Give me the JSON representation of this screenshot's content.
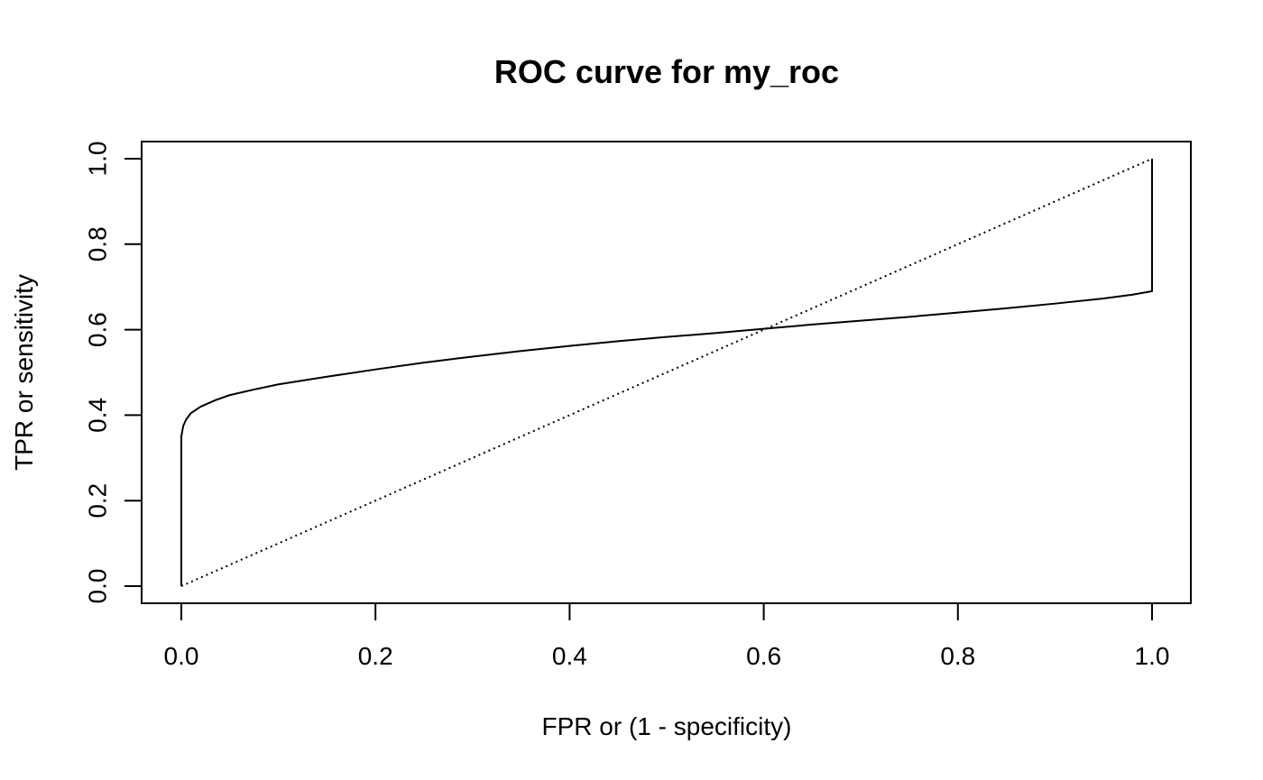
{
  "chart_data": {
    "type": "line",
    "title": "ROC curve for my_roc",
    "xlabel": "FPR or (1 - specificity)",
    "ylabel": "TPR or sensitivity",
    "xlim": [
      0,
      1
    ],
    "ylim": [
      0,
      1
    ],
    "x_ticks": [
      "0.0",
      "0.2",
      "0.4",
      "0.6",
      "0.8",
      "1.0"
    ],
    "y_ticks": [
      "0.0",
      "0.2",
      "0.4",
      "0.6",
      "0.8",
      "1.0"
    ],
    "grid": false,
    "legend": "none",
    "series": [
      {
        "style": "solid",
        "color": "#000000",
        "x": [
          0,
          0,
          0,
          0.002,
          0.005,
          0.01,
          0.02,
          0.035,
          0.05,
          0.075,
          0.1,
          0.15,
          0.2,
          0.25,
          0.3,
          0.35,
          0.4,
          0.45,
          0.5,
          0.55,
          0.6,
          0.65,
          0.7,
          0.75,
          0.8,
          0.85,
          0.9,
          0.95,
          0.98,
          1.0,
          1.0,
          1.0
        ],
        "y": [
          0,
          0.2,
          0.35,
          0.375,
          0.39,
          0.405,
          0.42,
          0.435,
          0.447,
          0.46,
          0.472,
          0.49,
          0.507,
          0.523,
          0.537,
          0.55,
          0.562,
          0.573,
          0.583,
          0.592,
          0.602,
          0.612,
          0.621,
          0.63,
          0.64,
          0.65,
          0.661,
          0.673,
          0.682,
          0.69,
          0.85,
          1.0
        ]
      },
      {
        "style": "dotted",
        "color": "#000000",
        "x": [
          0,
          1
        ],
        "y": [
          0,
          1
        ]
      }
    ]
  }
}
